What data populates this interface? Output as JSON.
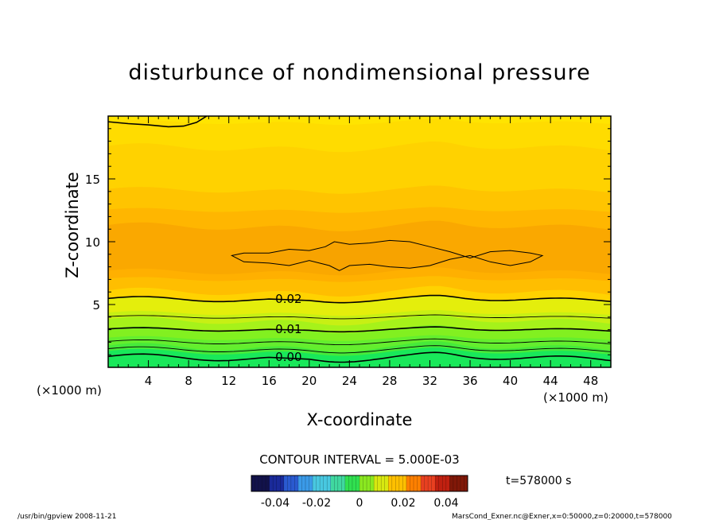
{
  "title": "disturbunce of nondimensional pressure",
  "chart_data": {
    "type": "heatmap",
    "title": "disturbunce of nondimensional pressure",
    "xlabel": "X-coordinate",
    "ylabel": "Z-coordinate",
    "x_unit_left": "(×1000 m)",
    "x_unit_right": "(×1000 m)",
    "xlim": [
      0,
      50
    ],
    "ylim": [
      0,
      20
    ],
    "x_ticks": [
      4,
      8,
      12,
      16,
      20,
      24,
      28,
      32,
      36,
      40,
      44,
      48
    ],
    "y_ticks": [
      5,
      10,
      15
    ],
    "bands": [
      {
        "z": 0.0,
        "color": "#19e85a"
      },
      {
        "z": 1.2,
        "color": "#46ea3a"
      },
      {
        "z": 1.6,
        "color": "#64ee2e"
      },
      {
        "z": 2.3,
        "color": "#82f020"
      },
      {
        "z": 3.0,
        "color": "#a6f21a"
      },
      {
        "z": 3.7,
        "color": "#c7f014"
      },
      {
        "z": 4.3,
        "color": "#e4ee0c"
      },
      {
        "z": 5.4,
        "color": "#ffd200"
      },
      {
        "z": 6.0,
        "color": "#ffbe00"
      },
      {
        "z": 7.0,
        "color": "#ffb000"
      },
      {
        "z": 7.6,
        "color": "#faa800"
      },
      {
        "z": 11.2,
        "color": "#ffb600"
      },
      {
        "z": 12.5,
        "color": "#ffc400"
      },
      {
        "z": 14.1,
        "color": "#ffd200"
      },
      {
        "z": 17.5,
        "color": "#ffdc00"
      },
      {
        "z": 19.5,
        "color": "#ffe400"
      }
    ],
    "contour_lines": [
      {
        "label": "0.00",
        "z": 0.75,
        "wave": 0.2,
        "label_x": 16.4
      },
      {
        "label": "",
        "z": 1.4,
        "wave": 0.15,
        "label_x": null
      },
      {
        "label": "",
        "z": 2.0,
        "wave": 0.12,
        "label_x": null
      },
      {
        "label": "0.01",
        "z": 3.0,
        "wave": 0.1,
        "label_x": 16.4
      },
      {
        "label": "",
        "z": 4.0,
        "wave": 0.08,
        "label_x": null
      },
      {
        "label": "0.02",
        "z": 5.4,
        "wave": 0.15,
        "label_x": 16.4
      }
    ],
    "contour_interval": "CONTOUR INTERVAL = 5.000E-03",
    "colorbar_ticks": [
      "-0.04",
      "-0.02",
      "0",
      "0.02",
      "0.04"
    ],
    "time": "t=578000 s"
  },
  "footer": {
    "left": "/usr/bin/gpview   2008-11-21",
    "right": "MarsCond_Exner.nc@Exner,x=0:50000,z=0:20000,t=578000"
  }
}
